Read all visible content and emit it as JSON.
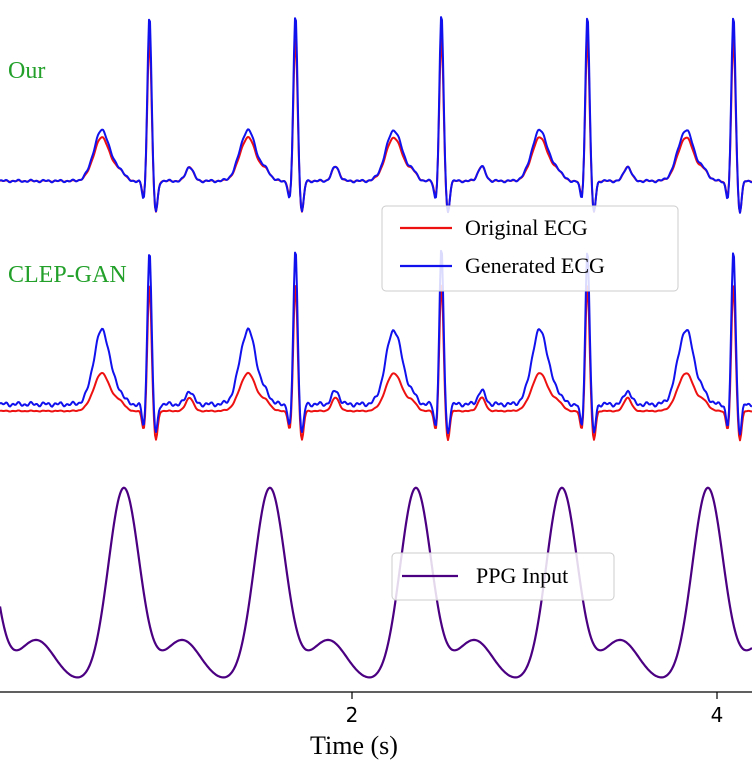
{
  "chart_data": {
    "type": "line",
    "xlabel": "Time (s)",
    "x_ticks": [
      2,
      4
    ],
    "xlim": [
      0.1,
      4.2
    ],
    "colors": {
      "original": "#ee1111",
      "generated": "#1111ee",
      "ppg": "#4b0082",
      "method_label": "#22a02a"
    },
    "heartbeats_s": [
      0.89,
      1.69,
      2.49,
      3.29,
      4.09
    ],
    "panels": [
      {
        "label": "Our",
        "legend": [
          "Original ECG",
          "Generated ECG"
        ],
        "series": [
          {
            "name": "Original ECG",
            "peak_r": 1.0,
            "peak_t": 0.3,
            "baseline": 0.0
          },
          {
            "name": "Generated ECG",
            "peak_r": 1.15,
            "peak_t": 0.35,
            "baseline": 0.0
          }
        ]
      },
      {
        "label": "CLEP-GAN",
        "series": [
          {
            "name": "Original ECG",
            "peak_r": 0.95,
            "peak_t": 0.28,
            "baseline": 0.0
          },
          {
            "name": "Generated ECG",
            "peak_r": 1.15,
            "peak_t": 0.55,
            "baseline": 0.05
          }
        ]
      },
      {
        "label": "",
        "legend": [
          "PPG Input"
        ],
        "series": [
          {
            "name": "PPG Input",
            "peaks_s": [
              0.75,
              1.55,
              2.35,
              3.15,
              3.95
            ],
            "troughs_s": [
              0.48,
              1.28,
              2.08,
              2.88,
              3.68
            ]
          }
        ]
      }
    ]
  }
}
